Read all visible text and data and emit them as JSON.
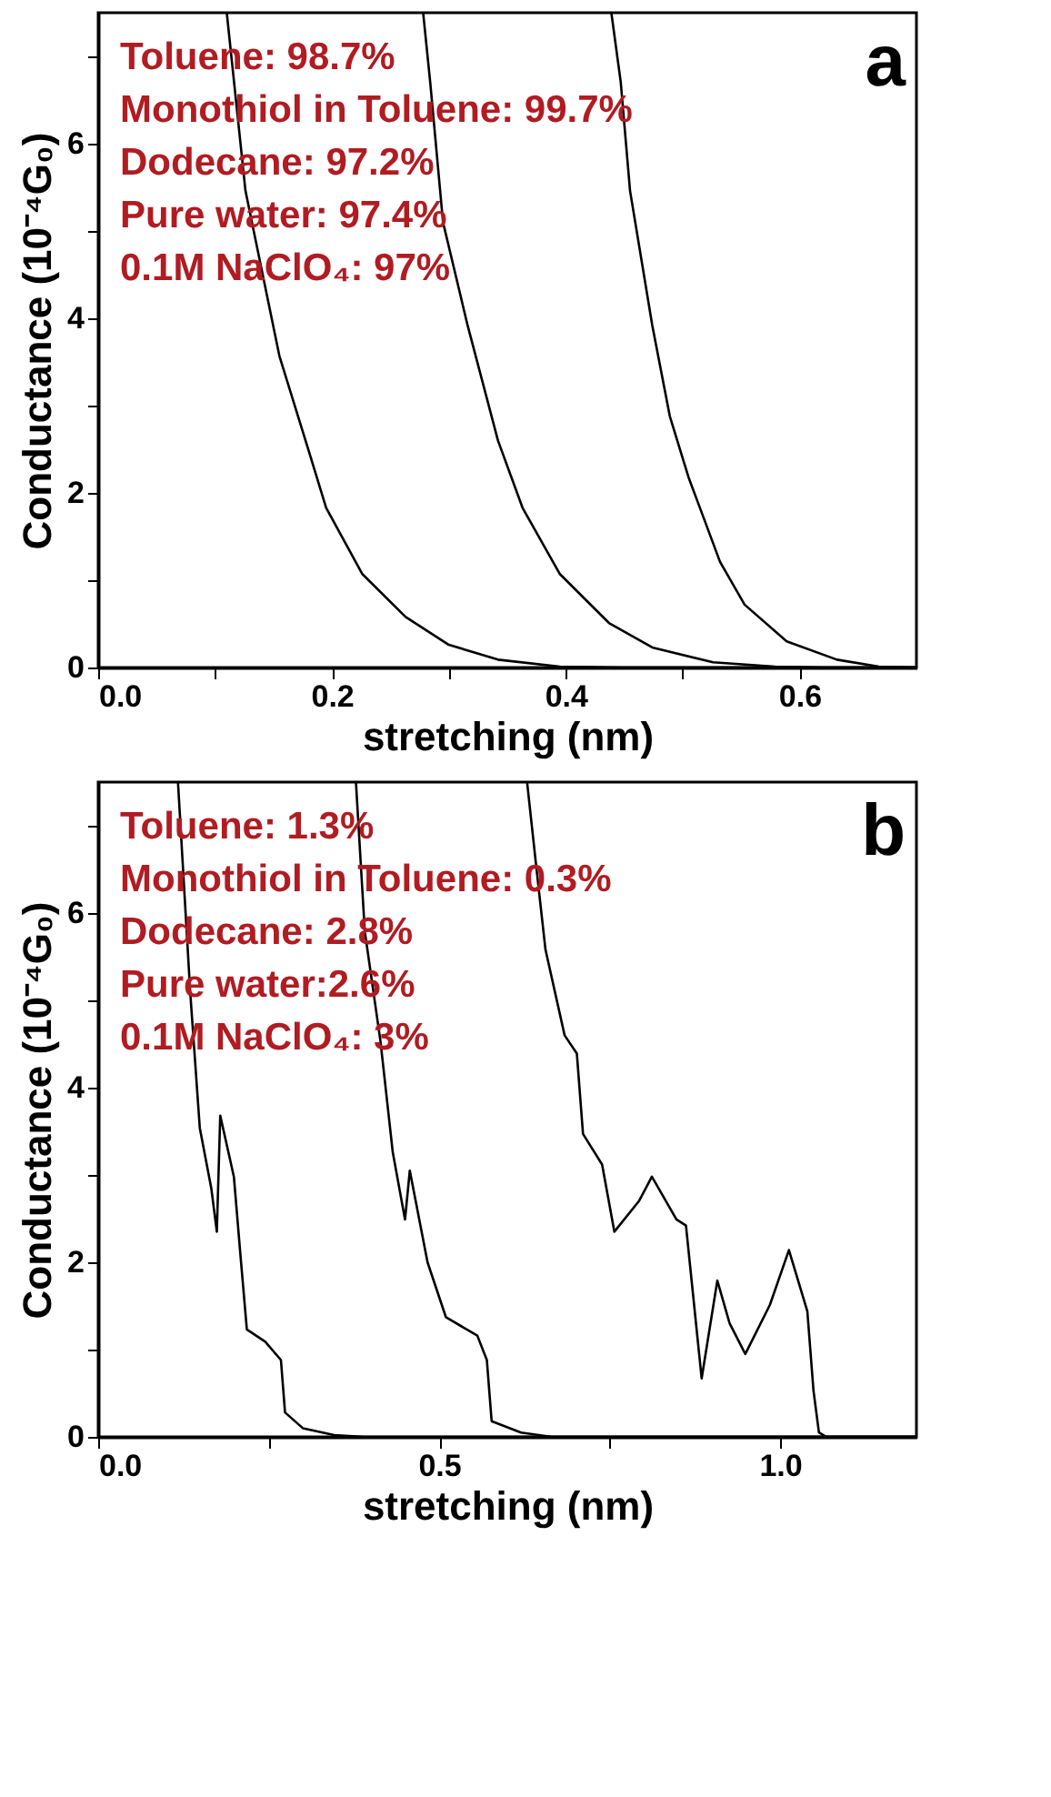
{
  "chart_data": [
    {
      "type": "line",
      "xlabel": "stretching (nm)",
      "ylabel": "Conductance (10⁻⁴G₀)",
      "annotations": [
        "Toluene: 98.7%",
        "Monothiol in Toluene: 99.7%",
        "Dodecane: 97.2%",
        "Pure water: 97.4%",
        "0.1M NaClO₄: 97%",
        "a"
      ],
      "xlim": [
        0,
        0.7
      ],
      "ylim": [
        0,
        7.5
      ],
      "xticks": [
        {
          "value": 0,
          "label": "0.0"
        },
        {
          "value": 0.1,
          "label": null
        },
        {
          "value": 0.2,
          "label": "0.2"
        },
        {
          "value": 0.3,
          "label": null
        },
        {
          "value": 0.4,
          "label": "0.4"
        },
        {
          "value": 0.5,
          "label": null
        },
        {
          "value": 0.6,
          "label": "0.6"
        }
      ],
      "yticks": [
        0,
        {
          "value": 1,
          "label": null
        },
        2,
        {
          "value": 3,
          "label": null
        },
        4,
        {
          "value": 5,
          "label": null
        },
        6,
        {
          "value": 7,
          "label": null
        }
      ],
      "series": [
        {
          "color": "#000000",
          "x": [
            0.11,
            0.126,
            0.155,
            0.179,
            0.195,
            0.226,
            0.263,
            0.3,
            0.342,
            0.395,
            0.45,
            0.7
          ],
          "values": [
            7.5,
            5.46,
            3.57,
            2.53,
            1.83,
            1.07,
            0.58,
            0.26,
            0.09,
            0.01,
            0,
            0
          ]
        },
        {
          "color": "#000000",
          "x": [
            0.278,
            0.284,
            0.295,
            0.316,
            0.342,
            0.363,
            0.395,
            0.437,
            0.474,
            0.526,
            0.579,
            0.62,
            0.7
          ],
          "values": [
            7.5,
            6.71,
            5.1,
            3.92,
            2.6,
            1.83,
            1.07,
            0.51,
            0.23,
            0.06,
            0.01,
            0,
            0
          ]
        },
        {
          "color": "#000000",
          "x": [
            0.439,
            0.447,
            0.455,
            0.474,
            0.489,
            0.505,
            0.532,
            0.553,
            0.589,
            0.632,
            0.668,
            0.7
          ],
          "values": [
            7.5,
            6.71,
            5.46,
            3.92,
            2.88,
            2.18,
            1.21,
            0.72,
            0.3,
            0.09,
            0.01,
            0
          ]
        }
      ]
    },
    {
      "type": "line",
      "xlabel": "stretching (nm)",
      "ylabel": "Conductance (10⁻⁴G₀)",
      "annotations": [
        "Toluene: 1.3%",
        "Monothiol in Toluene: 0.3%",
        "Dodecane: 2.8%",
        "Pure water:2.6%",
        "0.1M NaClO₄: 3%",
        "b"
      ],
      "xlim": [
        0,
        1.2
      ],
      "ylim": [
        0,
        7.5
      ],
      "xticks": [
        {
          "value": 0,
          "label": "0.0"
        },
        {
          "value": 0.25,
          "label": null
        },
        0.5,
        {
          "value": 0.75,
          "label": null
        },
        {
          "value": 1,
          "label": "1.0"
        }
      ],
      "yticks": [
        0,
        {
          "value": 1,
          "label": null
        },
        2,
        {
          "value": 3,
          "label": null
        },
        4,
        {
          "value": 5,
          "label": null
        },
        6,
        {
          "value": 7,
          "label": null
        }
      ],
      "series": [
        {
          "color": "#000000",
          "x": [
            0.117,
            0.135,
            0.149,
            0.166,
            0.174,
            0.179,
            0.199,
            0.208,
            0.218,
            0.245,
            0.268,
            0.274,
            0.3,
            0.346,
            0.39,
            1.2
          ],
          "values": [
            7.5,
            5.09,
            3.54,
            2.84,
            2.35,
            3.68,
            2.98,
            2.14,
            1.23,
            1.09,
            0.88,
            0.28,
            0.1,
            0.02,
            0,
            0
          ]
        },
        {
          "color": "#000000",
          "x": [
            0.378,
            0.391,
            0.414,
            0.432,
            0.45,
            0.457,
            0.483,
            0.51,
            0.556,
            0.57,
            0.577,
            0.62,
            0.665,
            1.2
          ],
          "values": [
            7.5,
            5.79,
            4.53,
            3.26,
            2.49,
            3.05,
            2.0,
            1.37,
            1.16,
            0.88,
            0.18,
            0.05,
            0,
            0
          ]
        },
        {
          "color": "#000000",
          "x": [
            0.629,
            0.643,
            0.656,
            0.684,
            0.702,
            0.711,
            0.739,
            0.757,
            0.793,
            0.812,
            0.848,
            0.862,
            0.885,
            0.908,
            0.926,
            0.949,
            0.985,
            1.013,
            1.04,
            1.049,
            1.057,
            1.068,
            1.2
          ],
          "values": [
            7.5,
            6.49,
            5.58,
            4.6,
            4.39,
            3.47,
            3.12,
            2.35,
            2.7,
            2.98,
            2.49,
            2.42,
            0.67,
            1.79,
            1.3,
            0.95,
            1.51,
            2.14,
            1.44,
            0.53,
            0.05,
            0,
            0
          ]
        }
      ]
    }
  ]
}
